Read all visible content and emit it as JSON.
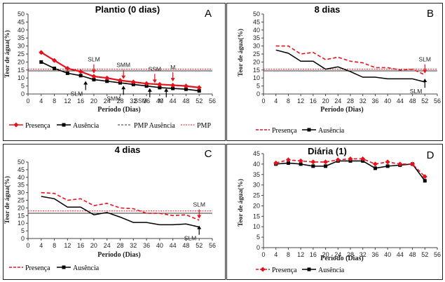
{
  "colors": {
    "presenca": "#e8101a",
    "ausencia": "#000000",
    "pmp_ausencia": "#333333",
    "pmp": "#e8101a",
    "panel_border": "#222222"
  },
  "chart_data": [
    {
      "type": "line",
      "title": "Plantio (0 dias)",
      "panel_letter": "A",
      "xlabel": "Período (Dias)",
      "ylabel": "Teor de água(%)",
      "xlim": [
        0,
        56
      ],
      "ylim": [
        0,
        50
      ],
      "x_ticks": [
        0,
        4,
        8,
        12,
        16,
        20,
        24,
        28,
        32,
        36,
        40,
        44,
        48,
        52,
        56
      ],
      "y_ticks": [
        0,
        5,
        10,
        15,
        20,
        25,
        30,
        35,
        40,
        45,
        50
      ],
      "series": [
        {
          "name": "Presença",
          "style": "solid-diamond",
          "x": [
            4,
            8,
            12,
            16,
            20,
            24,
            28,
            32,
            36,
            40,
            44,
            48,
            52
          ],
          "y": [
            26,
            21,
            16,
            14,
            11,
            10,
            8.5,
            7.5,
            6.5,
            6,
            5.5,
            5,
            4
          ]
        },
        {
          "name": "Ausência",
          "style": "solid-square",
          "x": [
            4,
            8,
            12,
            16,
            20,
            24,
            28,
            32,
            36,
            40,
            44,
            48,
            52
          ],
          "y": [
            20,
            16,
            13,
            11.5,
            9,
            8,
            7,
            6,
            5,
            4,
            3.5,
            3,
            2
          ]
        }
      ],
      "hlines": [
        {
          "name": "PMP Ausência",
          "y": 14.5,
          "style": "solid-dark"
        },
        {
          "name": "PMP",
          "y": 15.5,
          "style": "dotted-red"
        }
      ],
      "annotations": [
        {
          "text": "SLM",
          "x": 20,
          "y": 19,
          "arrow": "down",
          "color": "red"
        },
        {
          "text": "SMM",
          "x": 29,
          "y": 15.5,
          "arrow": "down",
          "color": "red"
        },
        {
          "text": "SSM",
          "x": 38.5,
          "y": 13,
          "arrow": "down",
          "color": "red"
        },
        {
          "text": "M",
          "x": 44,
          "y": 14,
          "arrow": "down",
          "color": "red"
        },
        {
          "text": "SLM",
          "x": 17.5,
          "y": 2,
          "arrow": "up",
          "color": "black"
        },
        {
          "text": "SMM",
          "x": 29,
          "y": -1,
          "arrow": "up",
          "color": "black"
        },
        {
          "text": "SSM",
          "x": 37,
          "y": -2.5,
          "arrow": "up",
          "color": "black"
        },
        {
          "text": "M",
          "x": 42,
          "y": -2.5,
          "arrow": "up",
          "color": "black"
        }
      ],
      "legend": [
        "Presença",
        "Ausência",
        "PMP Ausência",
        "PMP"
      ]
    },
    {
      "type": "line",
      "title": "8 dias",
      "panel_letter": "B",
      "xlabel": "Período (Dias)",
      "ylabel": "Teor de água(%)",
      "xlim": [
        0,
        56
      ],
      "ylim": [
        0,
        50
      ],
      "x_ticks": [
        0,
        4,
        8,
        12,
        16,
        20,
        24,
        28,
        32,
        36,
        40,
        44,
        48,
        52,
        56
      ],
      "y_ticks": [
        0,
        5,
        10,
        15,
        20,
        25,
        30,
        35,
        40,
        45,
        50
      ],
      "series": [
        {
          "name": "Presença",
          "style": "dashed-red",
          "x": [
            4,
            8,
            12,
            16,
            20,
            24,
            28,
            32,
            36,
            40,
            44,
            48,
            52
          ],
          "y": [
            30,
            30,
            25,
            26,
            21.5,
            23,
            20.5,
            19.5,
            16.5,
            16.5,
            15,
            15.5,
            12
          ]
        },
        {
          "name": "Ausência",
          "style": "solid-black",
          "x": [
            4,
            8,
            12,
            16,
            20,
            24,
            28,
            32,
            36,
            40,
            44,
            48,
            52
          ],
          "y": [
            27.5,
            25.5,
            20.5,
            20.5,
            15.5,
            17,
            14,
            10.5,
            10.5,
            9.5,
            9.5,
            9.5,
            7.5
          ]
        }
      ],
      "hlines": [
        {
          "y": 14.5,
          "style": "solid-dark"
        },
        {
          "y": 15.5,
          "style": "dotted-red"
        }
      ],
      "annotations": [
        {
          "text": "SLM",
          "x": 52,
          "y": 19,
          "arrow": "down",
          "color": "red"
        },
        {
          "text": "SLM",
          "x": 52,
          "y": 3.5,
          "arrow": "up",
          "color": "black"
        }
      ],
      "legend": [
        "Presença",
        "Ausência"
      ]
    },
    {
      "type": "line",
      "title": "4 dias",
      "panel_letter": "C",
      "xlabel": "Período (Dias)",
      "ylabel": "Teor de água(%)",
      "xlim": [
        0,
        56
      ],
      "ylim": [
        0,
        50
      ],
      "x_ticks": [
        0,
        4,
        8,
        12,
        16,
        20,
        24,
        28,
        32,
        36,
        40,
        44,
        48,
        52,
        56
      ],
      "y_ticks": [
        0,
        5,
        10,
        15,
        20,
        25,
        30,
        35,
        40,
        45,
        50
      ],
      "series": [
        {
          "name": "Presença",
          "style": "dashed-red",
          "x": [
            4,
            8,
            12,
            16,
            20,
            24,
            28,
            32,
            36,
            40,
            44,
            48,
            52
          ],
          "y": [
            30,
            29.5,
            25,
            26,
            21.5,
            23,
            20,
            19.5,
            16.5,
            16.5,
            15,
            15.5,
            12
          ]
        },
        {
          "name": "Ausência",
          "style": "solid-black",
          "x": [
            4,
            8,
            12,
            16,
            20,
            24,
            28,
            32,
            36,
            40,
            44,
            48,
            52
          ],
          "y": [
            27.5,
            26,
            20.5,
            20.5,
            15.5,
            17,
            14,
            10.5,
            10.5,
            9,
            9,
            9.5,
            7.5
          ]
        }
      ],
      "hlines": [
        {
          "y": 16.5,
          "style": "solid-dark"
        },
        {
          "y": 18,
          "style": "dotted-red"
        }
      ],
      "annotations": [
        {
          "text": "SLM",
          "x": 52,
          "y": 19.5,
          "arrow": "down",
          "color": "red"
        },
        {
          "text": "SLM",
          "x": 52,
          "y": 2,
          "arrow": "up",
          "color": "black"
        }
      ],
      "legend": [
        "Presença",
        "Ausência"
      ]
    },
    {
      "type": "line",
      "title": "Diária (1)",
      "panel_letter": "D",
      "xlabel": "Período (Dias)",
      "ylabel": "Teor de água(%)",
      "xlim": [
        0,
        56
      ],
      "ylim": [
        0,
        45
      ],
      "x_ticks": [
        0,
        4,
        8,
        12,
        16,
        20,
        24,
        28,
        32,
        36,
        40,
        44,
        48,
        52,
        56
      ],
      "y_ticks": [
        0,
        5,
        10,
        15,
        20,
        25,
        30,
        35,
        40,
        45
      ],
      "series": [
        {
          "name": "Presença",
          "style": "dashed-red-diamond",
          "x": [
            4,
            8,
            12,
            16,
            20,
            24,
            28,
            32,
            36,
            40,
            44,
            48,
            52
          ],
          "y": [
            40.5,
            42,
            41.5,
            41,
            41,
            42,
            42.5,
            42.5,
            40,
            41,
            40,
            40,
            34
          ]
        },
        {
          "name": "Ausência",
          "style": "solid-black-square",
          "x": [
            4,
            8,
            12,
            16,
            20,
            24,
            28,
            32,
            36,
            40,
            44,
            48,
            52
          ],
          "y": [
            40,
            40.5,
            40,
            39,
            39,
            41.5,
            41.5,
            41.5,
            38,
            39,
            39.5,
            40,
            32
          ]
        }
      ],
      "hlines": [],
      "annotations": [],
      "legend": [
        "Presença",
        "Ausência"
      ]
    }
  ]
}
